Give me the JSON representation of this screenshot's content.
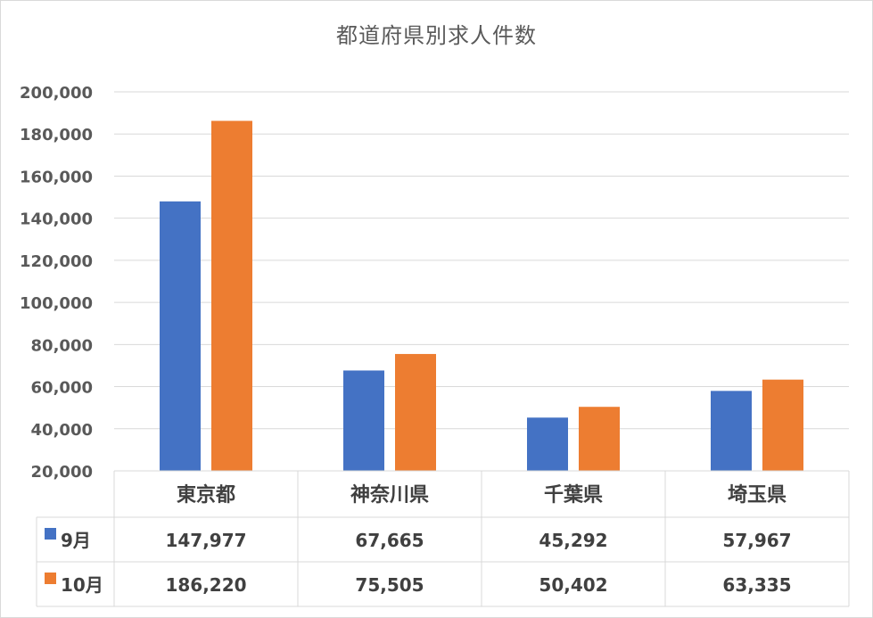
{
  "chart_data": {
    "type": "bar",
    "title": "都道府県別求人件数",
    "categories": [
      "東京都",
      "神奈川県",
      "千葉県",
      "埼玉県"
    ],
    "series": [
      {
        "name": "9月",
        "values": [
          147977,
          67665,
          45292,
          57967
        ],
        "display": [
          "147,977",
          "67,665",
          "45,292",
          "57,967"
        ],
        "color": "#4472c4"
      },
      {
        "name": "10月",
        "values": [
          186220,
          75505,
          50402,
          63335
        ],
        "display": [
          "186,220",
          "75,505",
          "50,402",
          "63,335"
        ],
        "color": "#ed7d31"
      }
    ],
    "ylim": [
      20000,
      200000
    ],
    "yticks": [
      20000,
      40000,
      60000,
      80000,
      100000,
      120000,
      140000,
      160000,
      180000,
      200000
    ],
    "ytick_labels": [
      "20,000",
      "40,000",
      "60,000",
      "80,000",
      "100,000",
      "120,000",
      "140,000",
      "160,000",
      "180,000",
      "200,000"
    ],
    "grid": true,
    "legend": "data-table",
    "xlabel": "",
    "ylabel": ""
  }
}
